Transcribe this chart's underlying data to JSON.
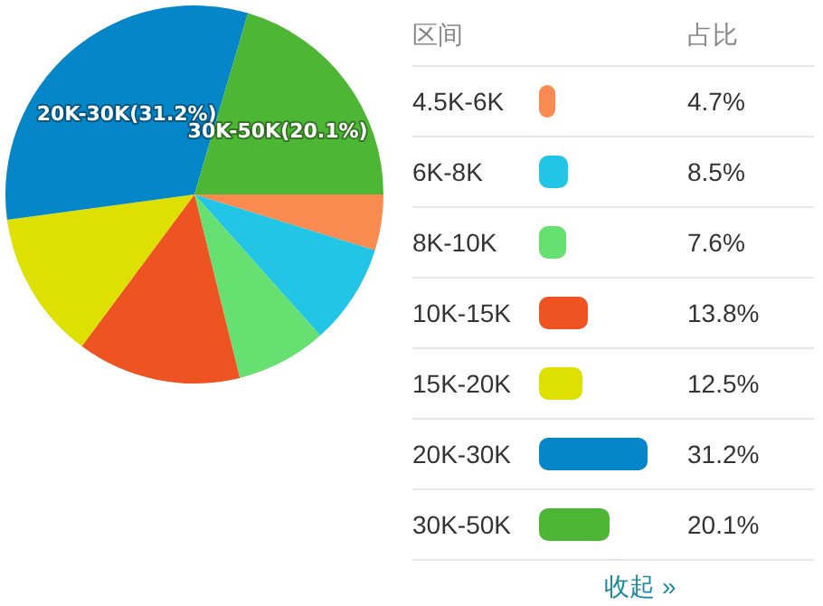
{
  "chart_data": {
    "type": "pie",
    "categories": [
      "4.5K-6K",
      "6K-8K",
      "8K-10K",
      "10K-15K",
      "15K-20K",
      "20K-30K",
      "30K-50K"
    ],
    "values": [
      4.7,
      8.5,
      7.6,
      13.8,
      12.5,
      31.2,
      20.1
    ],
    "colors": [
      "#f98b50",
      "#22c5e5",
      "#66e070",
      "#ee5421",
      "#dde000",
      "#0586c9",
      "#4db735"
    ],
    "value_labels": [
      "4.7%",
      "8.5%",
      "7.6%",
      "13.8%",
      "12.5%",
      "31.2%",
      "20.1%"
    ],
    "legend": "right",
    "annotations": [
      {
        "text": "20K-30K(31.2%)",
        "x": "20K-30K"
      },
      {
        "text": "30K-50K(20.1%)",
        "x": "30K-50K"
      },
      "区间",
      "占比",
      "收起 »"
    ]
  }
}
